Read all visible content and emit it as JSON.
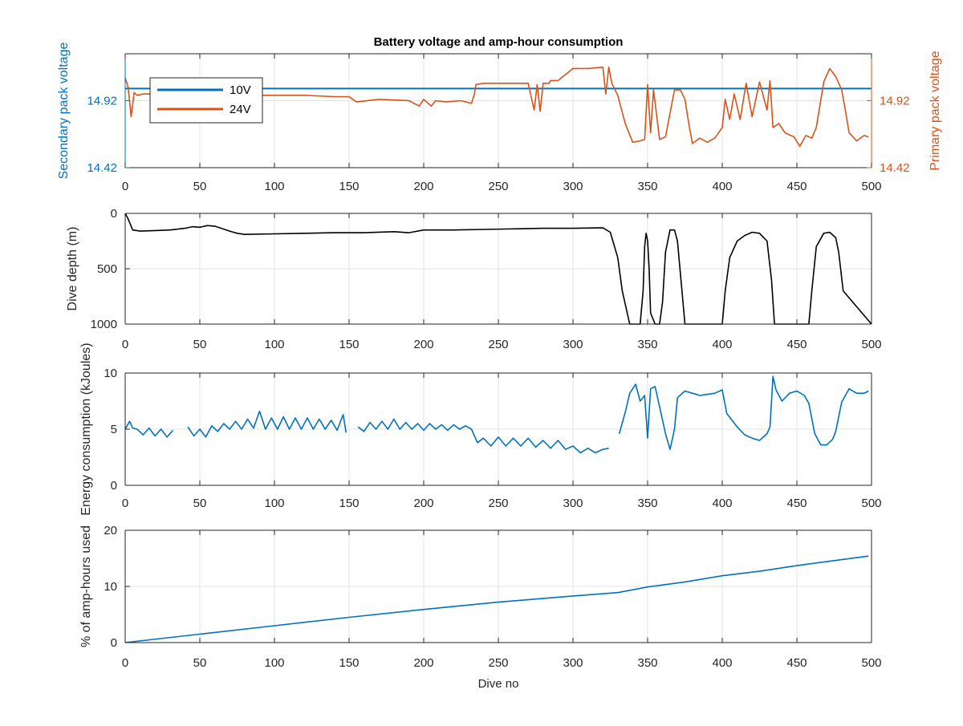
{
  "figure": {
    "title": "Battery voltage and amp-hour consumption",
    "shared_xlabel": "Dive no"
  },
  "colors": {
    "left_axis": "#0072BD",
    "right_axis": "#D95319",
    "series_10v": "#0072BD",
    "series_24v": "#D95319",
    "depth": "#000000",
    "energy": "#0072BD",
    "amp_hours": "#0072BD",
    "grid": "#e3e3e3"
  },
  "chart_data": [
    {
      "type": "line",
      "title": "Battery voltage and amp-hour consumption",
      "xlabel": "",
      "ylabel_left": "Secondary pack voltage",
      "ylabel_right": "Primary pack voltage",
      "xlim": [
        0,
        500
      ],
      "ylim": [
        14.42,
        15.27
      ],
      "xticks": [
        0,
        50,
        100,
        150,
        200,
        250,
        300,
        350,
        400,
        450,
        500
      ],
      "yticks": [
        14.42,
        14.92
      ],
      "ytick_labels": [
        "14.42",
        "14.92"
      ],
      "y2ticks": [
        14.42,
        14.92
      ],
      "y2tick_labels": [
        "14.42",
        "14.92"
      ],
      "grid": true,
      "legend": "top-left",
      "legend_entries": [
        "10V",
        "24V"
      ],
      "series": [
        {
          "name": "10V",
          "axis": "left",
          "x": [
            0,
            500
          ],
          "y": [
            15.01,
            15.01
          ]
        },
        {
          "name": "24V",
          "axis": "right",
          "x": [
            0,
            2,
            4,
            6,
            8,
            12,
            20,
            40,
            60,
            80,
            100,
            120,
            140,
            150,
            155,
            170,
            190,
            197,
            200,
            205,
            208,
            215,
            225,
            232,
            234,
            235,
            240,
            250,
            260,
            270,
            274,
            276,
            278,
            280,
            284,
            285,
            290,
            300,
            310,
            320,
            322,
            324,
            326,
            330,
            335,
            340,
            345,
            348,
            350,
            352,
            354,
            358,
            362,
            368,
            372,
            375,
            378,
            380,
            385,
            390,
            395,
            400,
            402,
            405,
            408,
            412,
            416,
            420,
            425,
            430,
            432,
            434,
            438,
            442,
            448,
            452,
            456,
            460,
            463,
            468,
            472,
            476,
            480,
            482,
            485,
            490,
            495,
            498
          ],
          "y": [
            15.09,
            15.02,
            14.8,
            14.98,
            14.96,
            14.97,
            14.97,
            14.96,
            14.97,
            14.96,
            14.96,
            14.96,
            14.95,
            14.95,
            14.91,
            14.93,
            14.92,
            14.88,
            14.93,
            14.88,
            14.92,
            14.91,
            14.92,
            14.9,
            14.97,
            15.04,
            15.05,
            15.05,
            15.05,
            15.05,
            14.85,
            15.04,
            14.84,
            15.05,
            15.05,
            15.07,
            15.07,
            15.16,
            15.16,
            15.17,
            14.97,
            15.17,
            15.05,
            14.96,
            14.75,
            14.61,
            14.62,
            14.63,
            15.04,
            14.68,
            15.0,
            14.63,
            14.65,
            15.0,
            15.0,
            14.93,
            14.72,
            14.6,
            14.64,
            14.61,
            14.64,
            14.72,
            14.93,
            14.78,
            14.97,
            14.78,
            15.05,
            14.8,
            15.06,
            14.85,
            15.07,
            14.72,
            14.75,
            14.68,
            14.65,
            14.58,
            14.66,
            14.64,
            14.72,
            15.06,
            15.16,
            15.1,
            15.0,
            14.88,
            14.68,
            14.62,
            14.66,
            14.65
          ]
        }
      ]
    },
    {
      "type": "line",
      "title": "",
      "xlabel": "",
      "ylabel": "Dive depth (m)",
      "xlim": [
        0,
        500
      ],
      "ylim": [
        1000,
        0
      ],
      "y_reversed": true,
      "xticks": [
        0,
        50,
        100,
        150,
        200,
        250,
        300,
        350,
        400,
        450,
        500
      ],
      "yticks": [
        0,
        500,
        1000
      ],
      "ytick_labels": [
        "0",
        "500",
        "1000"
      ],
      "grid": true,
      "series": [
        {
          "name": "",
          "x": [
            0,
            2,
            5,
            10,
            20,
            30,
            40,
            45,
            50,
            55,
            60,
            70,
            75,
            80,
            100,
            120,
            140,
            160,
            180,
            190,
            200,
            220,
            240,
            260,
            280,
            300,
            320,
            325,
            330,
            333,
            338,
            345,
            347,
            348,
            349,
            350,
            351,
            352,
            355,
            358,
            360,
            362,
            365,
            368,
            370,
            373,
            375,
            400,
            402,
            405,
            410,
            415,
            420,
            425,
            430,
            433,
            435,
            458,
            460,
            463,
            468,
            472,
            476,
            478,
            481,
            500
          ],
          "y": [
            0,
            50,
            150,
            160,
            155,
            150,
            135,
            120,
            125,
            110,
            115,
            160,
            180,
            190,
            185,
            180,
            175,
            175,
            165,
            175,
            150,
            150,
            145,
            140,
            135,
            135,
            130,
            170,
            400,
            700,
            1000,
            1000,
            700,
            300,
            180,
            250,
            500,
            900,
            1000,
            1000,
            800,
            350,
            150,
            150,
            250,
            700,
            1000,
            1000,
            700,
            400,
            250,
            200,
            170,
            180,
            250,
            600,
            1000,
            1000,
            700,
            300,
            180,
            170,
            220,
            350,
            700,
            1000
          ]
        }
      ]
    },
    {
      "type": "line",
      "title": "",
      "xlabel": "",
      "ylabel": "Energy consumption (kJoules)",
      "xlim": [
        0,
        500
      ],
      "ylim": [
        0,
        10
      ],
      "xticks": [
        0,
        50,
        100,
        150,
        200,
        250,
        300,
        350,
        400,
        450,
        500
      ],
      "yticks": [
        0,
        5,
        10
      ],
      "ytick_labels": [
        "0",
        "5",
        "10"
      ],
      "grid": true,
      "series": [
        {
          "name": "",
          "x": [
            0,
            3,
            5,
            8,
            12,
            16,
            20,
            24,
            28,
            32,
            null,
            42,
            46,
            50,
            54,
            58,
            62,
            66,
            70,
            74,
            78,
            82,
            86,
            90,
            94,
            98,
            102,
            106,
            110,
            114,
            118,
            122,
            126,
            130,
            134,
            138,
            142,
            146,
            148,
            null,
            156,
            160,
            164,
            168,
            172,
            176,
            180,
            184,
            188,
            192,
            196,
            200,
            204,
            208,
            212,
            216,
            220,
            224,
            228,
            232,
            236,
            240,
            245,
            250,
            255,
            260,
            265,
            270,
            275,
            280,
            285,
            290,
            295,
            300,
            305,
            310,
            315,
            320,
            324,
            null,
            331,
            335,
            338,
            342,
            345,
            348,
            350,
            352,
            355,
            358,
            362,
            365,
            368,
            370,
            375,
            380,
            385,
            390,
            395,
            400,
            403,
            410,
            415,
            420,
            425,
            430,
            432,
            434,
            436,
            440,
            445,
            450,
            455,
            458,
            462,
            466,
            470,
            474,
            476,
            480,
            485,
            490,
            495,
            498
          ],
          "y": [
            5.0,
            5.7,
            5.1,
            5.0,
            4.5,
            5.1,
            4.4,
            5.0,
            4.3,
            4.9,
            null,
            5.2,
            4.4,
            5.0,
            4.3,
            5.3,
            4.8,
            5.5,
            5.0,
            5.7,
            5.0,
            5.9,
            5.1,
            6.6,
            5.0,
            6.0,
            5.0,
            6.1,
            5.0,
            6.0,
            5.0,
            6.0,
            5.0,
            5.9,
            5.0,
            5.8,
            4.9,
            6.3,
            4.7,
            null,
            5.2,
            4.8,
            5.6,
            5.0,
            5.7,
            5.0,
            5.9,
            5.0,
            5.6,
            5.0,
            5.5,
            4.9,
            5.5,
            5.0,
            5.4,
            4.9,
            5.4,
            5.0,
            5.3,
            5.0,
            3.8,
            4.2,
            3.5,
            4.3,
            3.5,
            4.2,
            3.5,
            4.2,
            3.4,
            4.0,
            3.3,
            4.0,
            3.2,
            3.5,
            2.9,
            3.3,
            2.9,
            3.2,
            3.3,
            null,
            4.6,
            6.5,
            8.2,
            9.0,
            7.5,
            8.0,
            4.2,
            8.6,
            8.8,
            7.0,
            4.6,
            3.2,
            5.0,
            7.8,
            8.4,
            8.2,
            8.0,
            8.1,
            8.2,
            8.5,
            6.4,
            5.2,
            4.5,
            4.2,
            4.0,
            4.6,
            5.2,
            9.7,
            8.5,
            7.5,
            8.2,
            8.4,
            8.0,
            7.3,
            4.6,
            3.6,
            3.6,
            4.1,
            4.8,
            7.4,
            8.6,
            8.2,
            8.2,
            8.4
          ]
        }
      ]
    },
    {
      "type": "line",
      "title": "",
      "xlabel": "Dive no",
      "ylabel": "% of amp-hours used",
      "xlim": [
        0,
        500
      ],
      "ylim": [
        0,
        20
      ],
      "xticks": [
        0,
        50,
        100,
        150,
        200,
        250,
        300,
        350,
        400,
        450,
        500
      ],
      "yticks": [
        0,
        10,
        20
      ],
      "ytick_labels": [
        "0",
        "10",
        "20"
      ],
      "grid": true,
      "series": [
        {
          "name": "",
          "x": [
            0,
            50,
            100,
            150,
            200,
            250,
            300,
            330,
            350,
            375,
            400,
            425,
            450,
            475,
            498
          ],
          "y": [
            0,
            1.5,
            3.0,
            4.5,
            5.9,
            7.2,
            8.3,
            8.9,
            9.9,
            10.8,
            11.9,
            12.7,
            13.7,
            14.6,
            15.4
          ]
        }
      ]
    }
  ]
}
